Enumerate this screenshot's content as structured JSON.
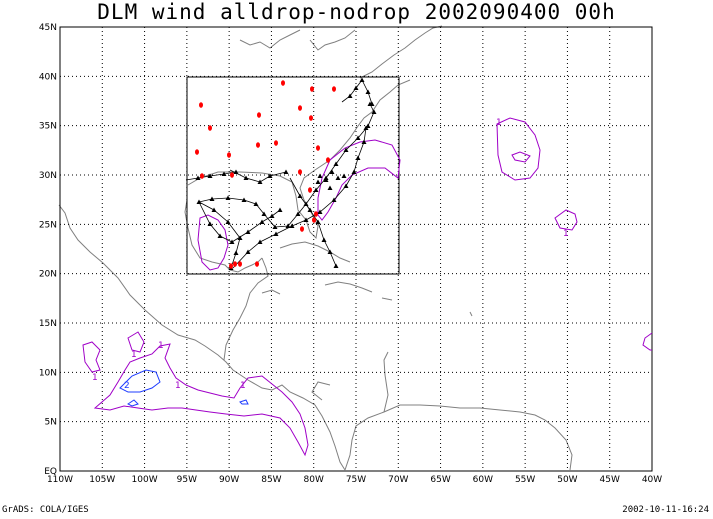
{
  "title": "DLM wind alldrop-nodrop 2002090400 00h",
  "footer_left": "GrADS: COLA/IGES",
  "footer_right": "2002-10-11-16:24",
  "map": {
    "lon_range": [
      -110,
      -40
    ],
    "lat_range": [
      0,
      45
    ],
    "lat_labels": [
      "EQ",
      "5N",
      "10N",
      "15N",
      "20N",
      "25N",
      "30N",
      "35N",
      "40N",
      "45N"
    ],
    "lon_labels": [
      "110W",
      "105W",
      "100W",
      "95W",
      "90W",
      "85W",
      "80W",
      "75W",
      "70W",
      "65W",
      "60W",
      "55W",
      "50W",
      "45W",
      "40W"
    ],
    "contour_labels": [
      "1",
      "1",
      "1",
      "1",
      "1",
      "2",
      "1",
      "1"
    ],
    "colors": {
      "coast": "#808080",
      "contour_one": "#a000c8",
      "contour_two": "#1e3cff",
      "drops": "#ff0000",
      "track": "#000000"
    }
  }
}
